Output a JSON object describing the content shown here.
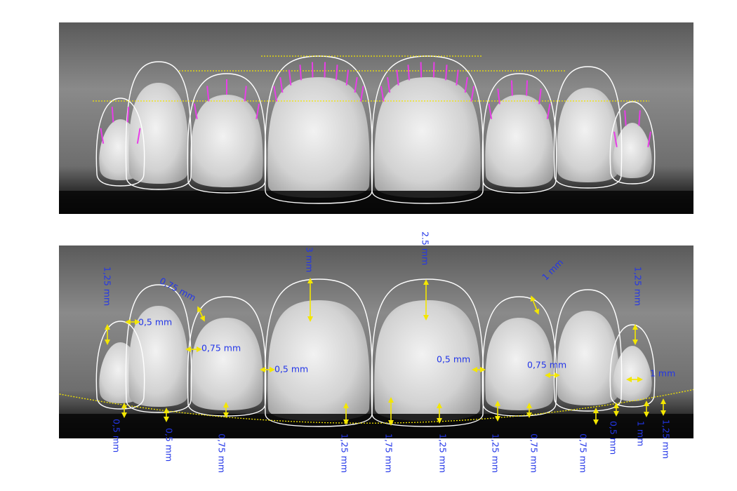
{
  "annotations": [
    "1,25 mm",
    "0,75 mm",
    "0,5 mm",
    "0,75 mm",
    "3 mm",
    "0,5 mm",
    "2.5 mm",
    "1 mm",
    "1,25 mm",
    "0,5 mm",
    "0,75 mm",
    "1 mm",
    "0,5 mm",
    "0,5 mm",
    "0,75 mm",
    "1,25 mm",
    "1,75 mm",
    "1,25 mm",
    "1,25 mm",
    "0,75 mm",
    "0,75 mm",
    "0,5 mm",
    "1 mm",
    "1,25 mm"
  ]
}
